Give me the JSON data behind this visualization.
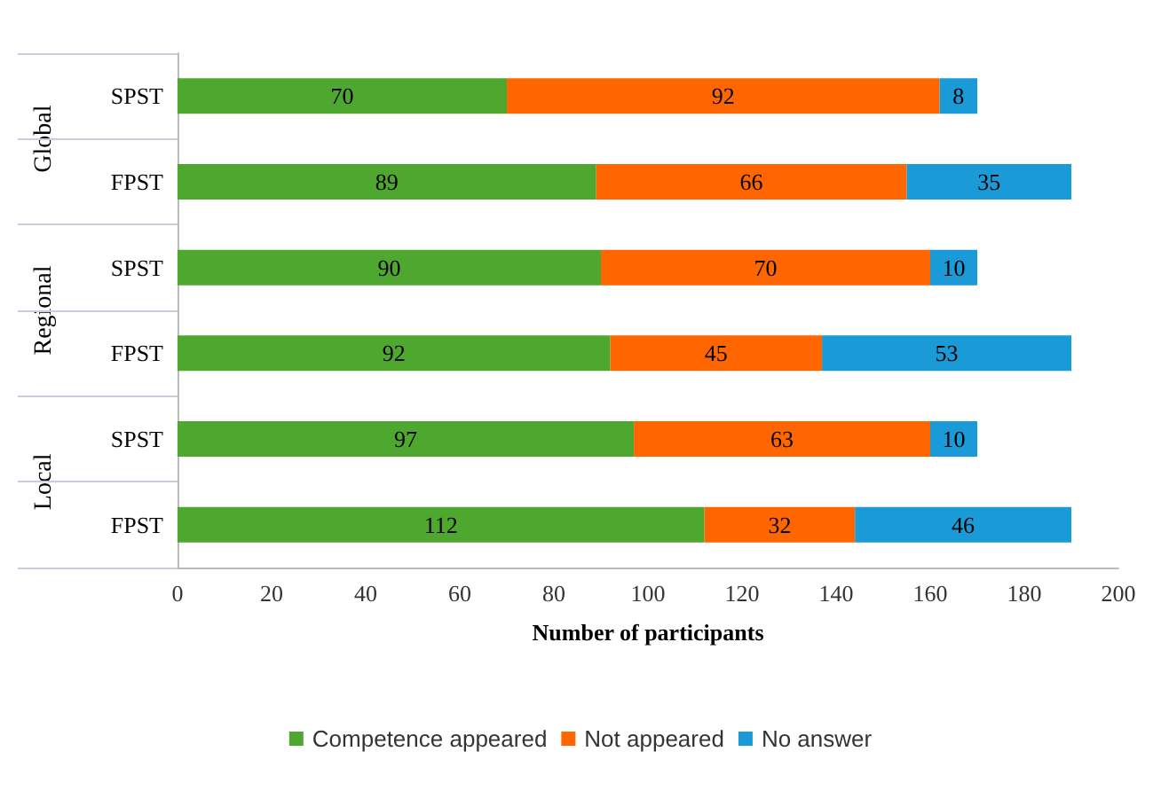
{
  "chart_data": {
    "type": "bar",
    "orientation": "horizontal",
    "stacked": true,
    "xlabel": "Number of participants",
    "categories": [
      "SPST",
      "FPST",
      "SPST",
      "FPST",
      "SPST",
      "FPST"
    ],
    "series": [
      {
        "name": "Competence appeared",
        "color": "#4ea72e",
        "values": [
          70,
          89,
          90,
          92,
          97,
          112
        ]
      },
      {
        "name": "Not appeared",
        "color": "#ff6600",
        "values": [
          92,
          66,
          70,
          45,
          63,
          32
        ]
      },
      {
        "name": "No answer",
        "color": "#1a9ad6",
        "values": [
          8,
          35,
          10,
          53,
          10,
          46
        ]
      }
    ],
    "xlim": [
      0,
      200
    ],
    "xticks": [
      0,
      20,
      40,
      60,
      80,
      100,
      120,
      140,
      160,
      180,
      200
    ],
    "annotations": [
      "Global",
      "Regional",
      "Local"
    ],
    "data_labels": true,
    "legend": "bottom",
    "grid": false
  }
}
